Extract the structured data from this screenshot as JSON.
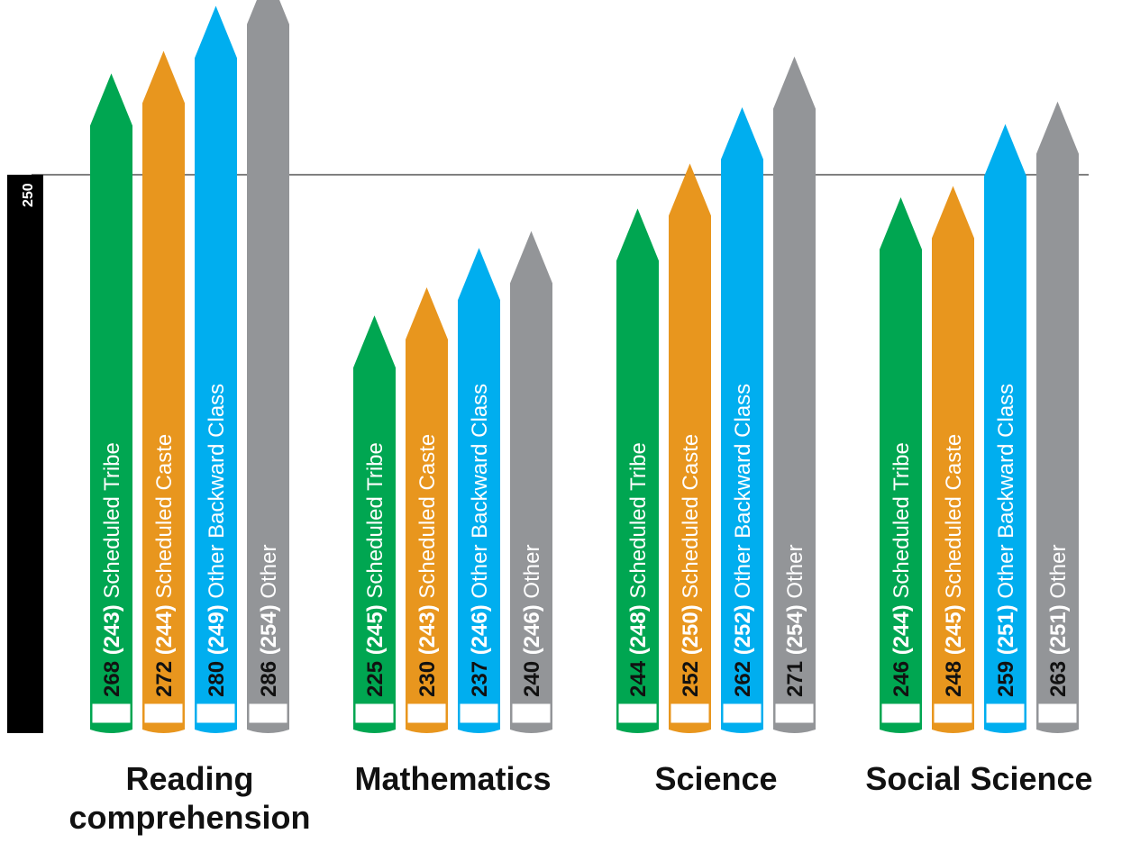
{
  "chart_data": {
    "type": "bar",
    "reference_value": "250",
    "categories": [
      {
        "name": [
          "Reading",
          "comprehension"
        ]
      },
      {
        "name": [
          "Mathematics"
        ]
      },
      {
        "name": [
          "Science"
        ]
      },
      {
        "name": [
          "Social Science"
        ]
      }
    ],
    "groups": [
      {
        "name": "Scheduled Tribe",
        "color": "#00a651"
      },
      {
        "name": "Scheduled Caste",
        "color": "#e8961e"
      },
      {
        "name": "Other Backward Class",
        "color": "#00aeef"
      },
      {
        "name": "Other",
        "color": "#939598"
      }
    ],
    "values": [
      [
        268,
        272,
        280,
        286
      ],
      [
        225,
        230,
        237,
        240
      ],
      [
        244,
        252,
        262,
        271
      ],
      [
        246,
        248,
        259,
        263
      ]
    ],
    "paren_values": [
      [
        243,
        244,
        249,
        254
      ],
      [
        245,
        243,
        246,
        246
      ],
      [
        248,
        250,
        252,
        254
      ],
      [
        244,
        245,
        251,
        251
      ]
    ]
  }
}
